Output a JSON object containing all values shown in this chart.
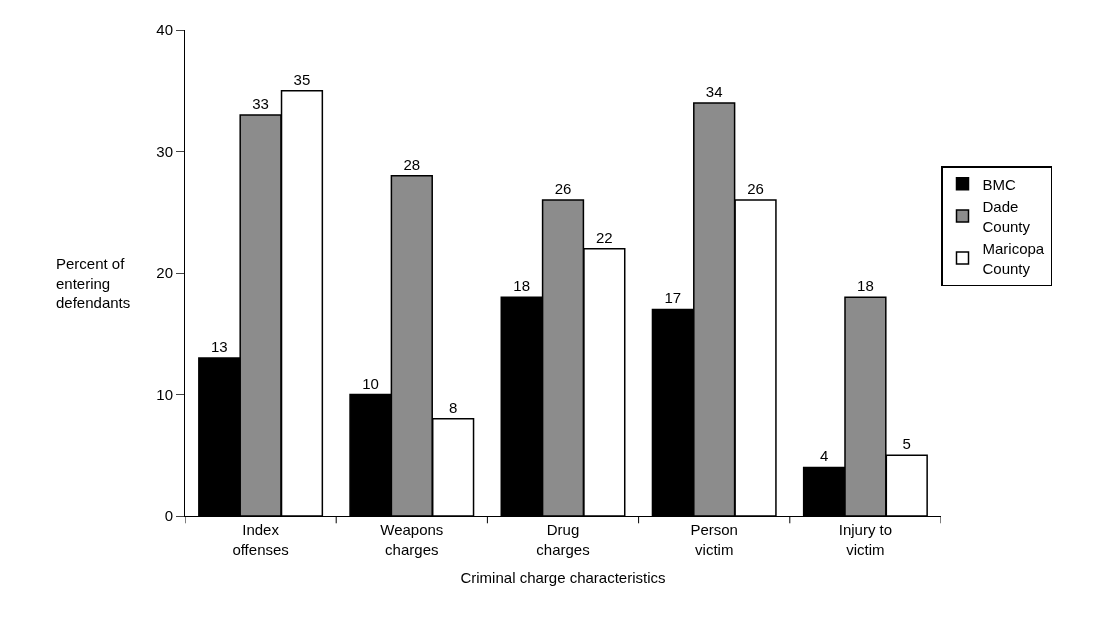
{
  "chart_data": {
    "type": "bar",
    "xlabel": "Criminal charge characteristics",
    "ylabel": "Percent of\nentering\ndefendants",
    "categories": [
      "Index\noffenses",
      "Weapons\ncharges",
      "Drug\ncharges",
      "Person\nvictim",
      "Injury to\nvictim"
    ],
    "series": [
      {
        "name": "BMC",
        "color": "#000000",
        "values": [
          13,
          10,
          18,
          17,
          4
        ]
      },
      {
        "name": "Dade\nCounty",
        "color": "#8c8c8c",
        "values": [
          33,
          28,
          26,
          34,
          18
        ]
      },
      {
        "name": "Maricopa\nCounty",
        "color": "#ffffff",
        "values": [
          35,
          8,
          22,
          26,
          5
        ]
      }
    ],
    "ylim": [
      0,
      40
    ],
    "yticks": [
      0,
      10,
      20,
      30,
      40
    ],
    "legend": "right",
    "data_labels": true
  }
}
